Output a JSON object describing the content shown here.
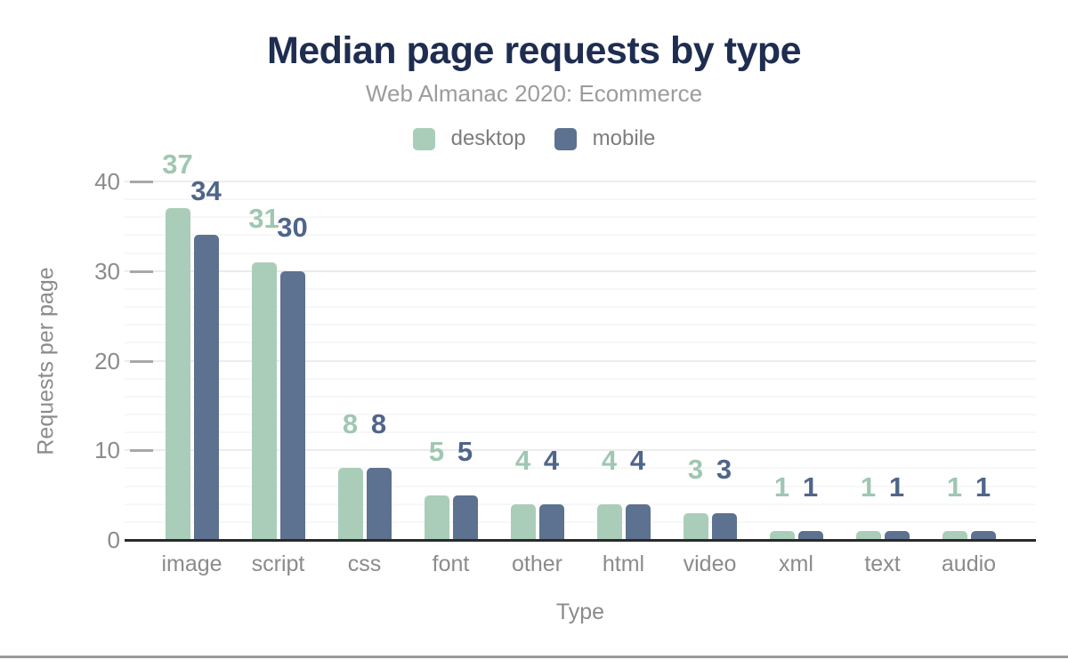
{
  "chart_data": {
    "type": "bar",
    "title": "Median page requests by type",
    "subtitle": "Web Almanac 2020: Ecommerce",
    "categories": [
      "image",
      "script",
      "css",
      "font",
      "other",
      "html",
      "video",
      "xml",
      "text",
      "audio"
    ],
    "series": [
      {
        "name": "desktop",
        "values": [
          37,
          31,
          8,
          5,
          4,
          4,
          3,
          1,
          1,
          1
        ],
        "color": "#a9cdb9",
        "label_color": "#9fc7b2"
      },
      {
        "name": "mobile",
        "values": [
          34,
          30,
          8,
          5,
          4,
          4,
          3,
          1,
          1,
          1
        ],
        "color": "#5d7190",
        "label_color": "#50658a"
      }
    ],
    "xlabel": "Type",
    "ylabel": "Requests per page",
    "ylim": [
      0,
      40
    ],
    "y_ticks": [
      0,
      10,
      20,
      30,
      40
    ],
    "y_minor_step": 2,
    "grid": true,
    "legend_position": "top",
    "data_labels": true
  },
  "colors": {
    "title": "#1e2d50",
    "subtitle": "#9c9c9c",
    "axis_text": "#8b8b8b",
    "legend_text": "#7d7d7d",
    "axis_line": "#2a2a2a",
    "grid_major": "#ececec",
    "grid_minor": "#f7f7f7",
    "tick": "#a8a8a8",
    "bottom_strip": "#9b9b9b",
    "background": "#ffffff"
  }
}
